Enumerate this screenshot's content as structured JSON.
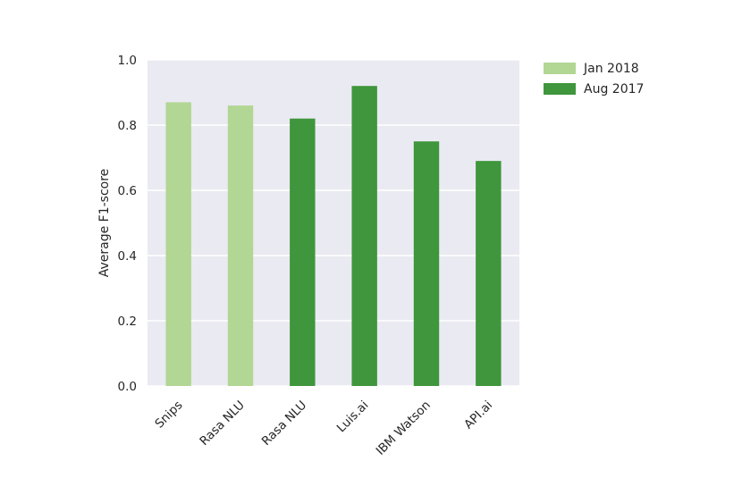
{
  "chart_data": {
    "type": "bar",
    "categories": [
      "Snips",
      "Rasa NLU",
      "Rasa NLU",
      "Luis.ai",
      "IBM Watson",
      "API.ai"
    ],
    "values": [
      0.87,
      0.86,
      0.82,
      0.92,
      0.75,
      0.69
    ],
    "bar_series": [
      "Jan 2018",
      "Jan 2018",
      "Aug 2017",
      "Aug 2017",
      "Aug 2017",
      "Aug 2017"
    ],
    "series": [
      {
        "name": "Jan 2018",
        "color": "#b2d693"
      },
      {
        "name": "Aug 2017",
        "color": "#3f963c"
      }
    ],
    "title": "",
    "xlabel": "",
    "ylabel": "Average F1-score",
    "ylim": [
      0,
      1.0
    ],
    "yticks": [
      "0.0",
      "0.2",
      "0.4",
      "0.6",
      "0.8",
      "1.0"
    ],
    "grid": true,
    "legend_position": "outside-right-top",
    "background_color": "#eaeaf2"
  }
}
